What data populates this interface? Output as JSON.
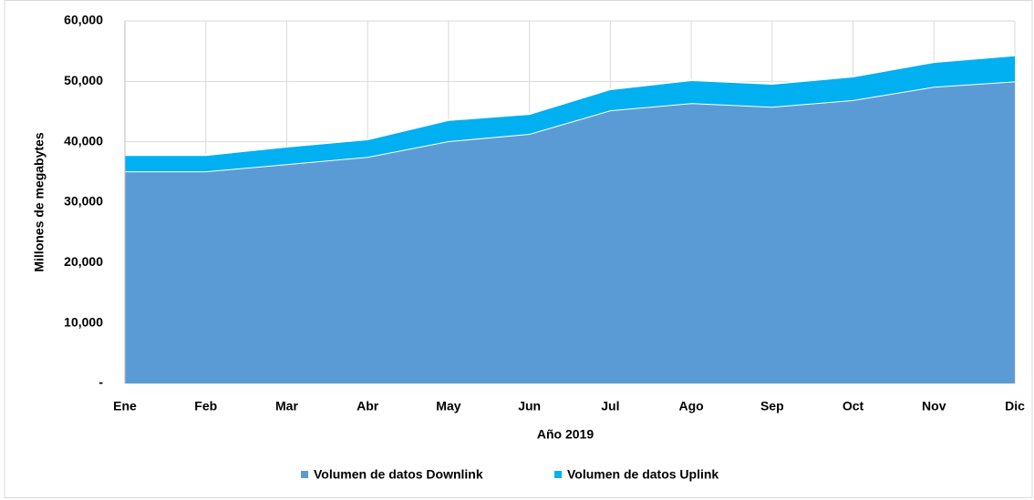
{
  "chart_data": {
    "type": "stacked_area",
    "categories": [
      "Ene",
      "Feb",
      "Mar",
      "Abr",
      "May",
      "Jun",
      "Jul",
      "Ago",
      "Sep",
      "Oct",
      "Nov",
      "Dic"
    ],
    "series": [
      {
        "name": "Volumen de datos Downlink",
        "color": "#5b9bd5",
        "values": [
          35100,
          35100,
          36300,
          37500,
          40100,
          41300,
          45200,
          46400,
          45800,
          46900,
          49100,
          50000
        ]
      },
      {
        "name": "Volumen de datos Uplink",
        "color": "#00b0f0",
        "values": [
          2700,
          2700,
          2900,
          2900,
          3500,
          3300,
          3500,
          3800,
          3800,
          3900,
          4100,
          4300
        ]
      }
    ],
    "xlabel": "Año 2019",
    "ylabel": "Millones de megabytes",
    "ylim": [
      0,
      60000
    ],
    "yticks": [
      {
        "value": 0,
        "label": "-"
      },
      {
        "value": 10000,
        "label": "10,000"
      },
      {
        "value": 20000,
        "label": "20,000"
      },
      {
        "value": 30000,
        "label": "30,000"
      },
      {
        "value": 40000,
        "label": "40,000"
      },
      {
        "value": 50000,
        "label": "50,000"
      },
      {
        "value": 60000,
        "label": "60,000"
      }
    ],
    "grid": true,
    "legend": "bottom"
  }
}
